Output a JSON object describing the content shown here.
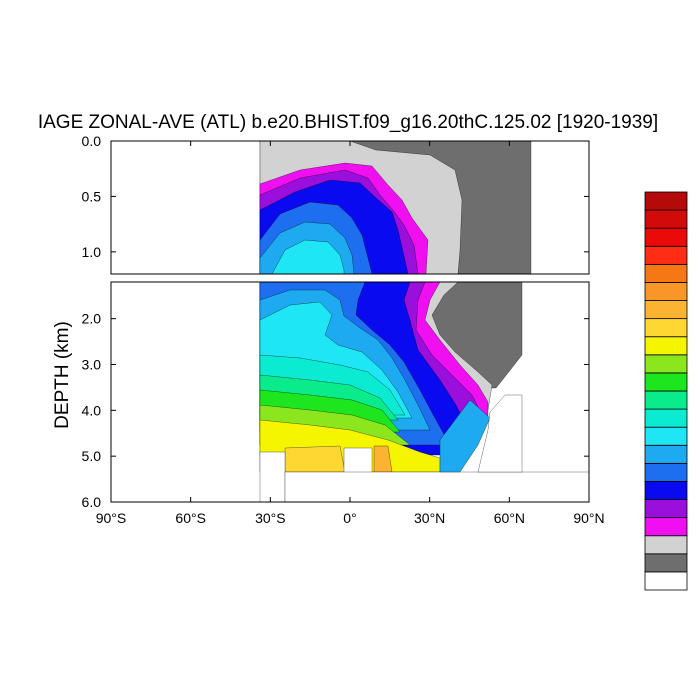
{
  "chart_data": {
    "type": "contour",
    "title": "IAGE ZONAL-AVE (ATL) b.e20.BHIST.f09_g16.20thC.125.02 [1920-1939]",
    "ylabel": "DEPTH (km)",
    "xlabel": "",
    "x_ticks": [
      {
        "value": -90,
        "label": "90°S"
      },
      {
        "value": -60,
        "label": "60°S"
      },
      {
        "value": -30,
        "label": "30°S"
      },
      {
        "value": 0,
        "label": "0°"
      },
      {
        "value": 30,
        "label": "30°N"
      },
      {
        "value": 60,
        "label": "60°N"
      },
      {
        "value": 90,
        "label": "90°N"
      }
    ],
    "xlim": [
      -90,
      90
    ],
    "upper_panel": {
      "ylim": [
        0,
        1.2
      ],
      "y_ticks": [
        {
          "value": 0.0,
          "label": "0.0"
        },
        {
          "value": 0.5,
          "label": "0.5"
        },
        {
          "value": 1.0,
          "label": "1.0"
        }
      ]
    },
    "lower_panel": {
      "ylim": [
        1.2,
        6.0
      ],
      "y_ticks": [
        {
          "value": 2.0,
          "label": "2.0"
        },
        {
          "value": 3.0,
          "label": "3.0"
        },
        {
          "value": 4.0,
          "label": "4.0"
        },
        {
          "value": 5.0,
          "label": "5.0"
        },
        {
          "value": 6.0,
          "label": "6.0"
        }
      ]
    },
    "data_extent": {
      "lat_min": -34,
      "lat_max": 68
    },
    "colorbar": {
      "orientation": "vertical",
      "colors": [
        "#ffffff",
        "#6e6e6e",
        "#d2d2d2",
        "#f00ff0",
        "#9b0fdc",
        "#0a0af0",
        "#1e6ef0",
        "#1eaaf0",
        "#1ee6f5",
        "#0aebd2",
        "#0aeb8c",
        "#1ee61e",
        "#8ce61e",
        "#f5f500",
        "#ffd732",
        "#fbb432",
        "#f89628",
        "#f57814",
        "#ff2d14",
        "#eb0a0a",
        "#d20a0a",
        "#b40a0a"
      ],
      "labels": []
    },
    "background_color": "#ffffff"
  }
}
